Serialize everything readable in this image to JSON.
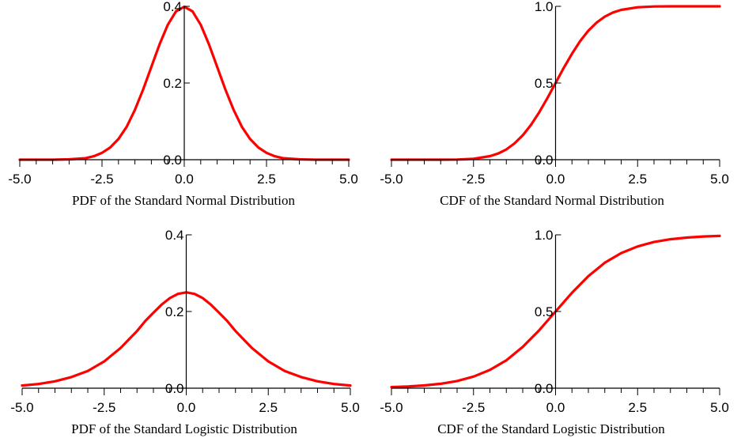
{
  "colors": {
    "curve": "#ff0000",
    "axis": "#000000",
    "background": "#ffffff"
  },
  "chart_data": [
    {
      "type": "line",
      "title": "PDF of the Standard Normal Distribution",
      "xlabel": "",
      "ylabel": "",
      "xlim": [
        -5,
        5
      ],
      "ylim": [
        0,
        0.4
      ],
      "x_ticks": [
        "-5.0",
        "-2.5",
        "0.0",
        "2.5",
        "5.0"
      ],
      "y_ticks": [
        "0.0",
        "0.2",
        "0.4"
      ],
      "minor_x_ticks_per_interval": 5,
      "series": [
        {
          "x": [
            -5,
            -4.5,
            -4,
            -3.5,
            -3,
            -2.75,
            -2.5,
            -2.25,
            -2,
            -1.75,
            -1.5,
            -1.25,
            -1,
            -0.75,
            -0.5,
            -0.25,
            0,
            0.25,
            0.5,
            0.75,
            1,
            1.25,
            1.5,
            1.75,
            2,
            2.25,
            2.5,
            2.75,
            3,
            3.5,
            4,
            4.5,
            5
          ],
          "values": [
            0.0,
            0.0,
            0.0,
            0.001,
            0.004,
            0.009,
            0.018,
            0.032,
            0.054,
            0.086,
            0.13,
            0.183,
            0.242,
            0.301,
            0.352,
            0.387,
            0.399,
            0.387,
            0.352,
            0.301,
            0.242,
            0.183,
            0.13,
            0.086,
            0.054,
            0.032,
            0.018,
            0.009,
            0.004,
            0.001,
            0.0,
            0.0,
            0.0
          ]
        }
      ]
    },
    {
      "type": "line",
      "title": "CDF of the Standard Normal Distribution",
      "xlabel": "",
      "ylabel": "",
      "xlim": [
        -5,
        5
      ],
      "ylim": [
        0,
        1
      ],
      "x_ticks": [
        "-5.0",
        "-2.5",
        "0.0",
        "2.5",
        "5.0"
      ],
      "y_ticks": [
        "0.0",
        "0.5",
        "1.0"
      ],
      "minor_x_ticks_per_interval": 5,
      "series": [
        {
          "x": [
            -5,
            -4,
            -3.5,
            -3,
            -2.5,
            -2,
            -1.75,
            -1.5,
            -1.25,
            -1,
            -0.75,
            -0.5,
            -0.25,
            0,
            0.25,
            0.5,
            0.75,
            1,
            1.25,
            1.5,
            1.75,
            2,
            2.5,
            3,
            3.5,
            4,
            5
          ],
          "values": [
            0.0,
            0.0,
            0.0,
            0.001,
            0.006,
            0.023,
            0.04,
            0.067,
            0.106,
            0.159,
            0.227,
            0.309,
            0.401,
            0.5,
            0.599,
            0.691,
            0.773,
            0.841,
            0.894,
            0.933,
            0.96,
            0.977,
            0.994,
            0.999,
            1.0,
            1.0,
            1.0
          ]
        }
      ]
    },
    {
      "type": "line",
      "title": "PDF of the Standard Logistic Distribution",
      "xlabel": "",
      "ylabel": "",
      "xlim": [
        -5,
        5
      ],
      "ylim": [
        0,
        0.4
      ],
      "x_ticks": [
        "-5.0",
        "-2.5",
        "0.0",
        "2.5",
        "5.0"
      ],
      "y_ticks": [
        "0.0",
        "0.2",
        "0.4"
      ],
      "minor_x_ticks_per_interval": 5,
      "series": [
        {
          "x": [
            -5,
            -4.5,
            -4,
            -3.5,
            -3,
            -2.5,
            -2,
            -1.75,
            -1.5,
            -1.25,
            -1,
            -0.75,
            -0.5,
            -0.25,
            0,
            0.25,
            0.5,
            0.75,
            1,
            1.25,
            1.5,
            1.75,
            2,
            2.5,
            3,
            3.5,
            4,
            4.5,
            5
          ],
          "values": [
            0.007,
            0.011,
            0.018,
            0.029,
            0.045,
            0.07,
            0.105,
            0.127,
            0.149,
            0.175,
            0.197,
            0.218,
            0.235,
            0.246,
            0.25,
            0.246,
            0.235,
            0.218,
            0.197,
            0.175,
            0.149,
            0.127,
            0.105,
            0.07,
            0.045,
            0.029,
            0.018,
            0.011,
            0.007
          ]
        }
      ]
    },
    {
      "type": "line",
      "title": "CDF of the Standard Logistic Distribution",
      "xlabel": "",
      "ylabel": "",
      "xlim": [
        -5,
        5
      ],
      "ylim": [
        0,
        1
      ],
      "x_ticks": [
        "-5.0",
        "-2.5",
        "0.0",
        "2.5",
        "5.0"
      ],
      "y_ticks": [
        "0.0",
        "0.5",
        "1.0"
      ],
      "minor_x_ticks_per_interval": 5,
      "series": [
        {
          "x": [
            -5,
            -4.5,
            -4,
            -3.5,
            -3,
            -2.5,
            -2,
            -1.5,
            -1,
            -0.5,
            0,
            0.5,
            1,
            1.5,
            2,
            2.5,
            3,
            3.5,
            4,
            4.5,
            5
          ],
          "values": [
            0.007,
            0.011,
            0.018,
            0.029,
            0.047,
            0.076,
            0.119,
            0.182,
            0.269,
            0.378,
            0.5,
            0.622,
            0.731,
            0.818,
            0.881,
            0.924,
            0.953,
            0.971,
            0.982,
            0.989,
            0.993
          ]
        }
      ]
    }
  ]
}
